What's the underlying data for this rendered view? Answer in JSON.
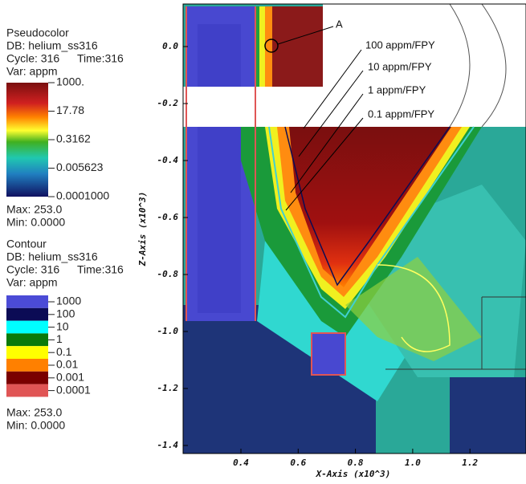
{
  "pseudocolor_legend": {
    "title": "Pseudocolor",
    "db": "DB: helium_ss316",
    "cycle": "Cycle: 316",
    "time": "Time:316",
    "var": "Var: appm",
    "labels": [
      "1000.",
      "17.78",
      "0.3162",
      "0.005623",
      "0.0001000"
    ],
    "max": "Max: 253.0",
    "min": "Min: 0.0000"
  },
  "contour_legend": {
    "title": "Contour",
    "db": "DB: helium_ss316",
    "cycle": "Cycle: 316",
    "time": "Time:316",
    "var": "Var: appm",
    "levels": [
      {
        "label": "1000",
        "color": "#4b4bd6"
      },
      {
        "label": "100",
        "color": "#0b0b55"
      },
      {
        "label": "10",
        "color": "#00ffff"
      },
      {
        "label": "1",
        "color": "#0a7a0a"
      },
      {
        "label": "0.1",
        "color": "#ffff00"
      },
      {
        "label": "0.01",
        "color": "#ff8000"
      },
      {
        "label": "0.001",
        "color": "#7a0000"
      },
      {
        "label": "0.0001",
        "color": "#e05555"
      }
    ],
    "max": "Max: 253.0",
    "min": "Min: 0.0000"
  },
  "axes": {
    "x_label": "X-Axis (x10^3)",
    "y_label": "Z-Axis (x10^3)",
    "xticks": [
      "0.4",
      "0.6",
      "0.8",
      "1.0",
      "1.2"
    ],
    "yticks": [
      "0.0",
      "-0.2",
      "-0.4",
      "-0.6",
      "-0.8",
      "-1.0",
      "-1.2",
      "-1.4"
    ]
  },
  "annotations": [
    "A",
    "100 appm/FPY",
    "10 appm/FPY",
    "1 appm/FPY",
    "0.1 appm/FPY"
  ]
}
